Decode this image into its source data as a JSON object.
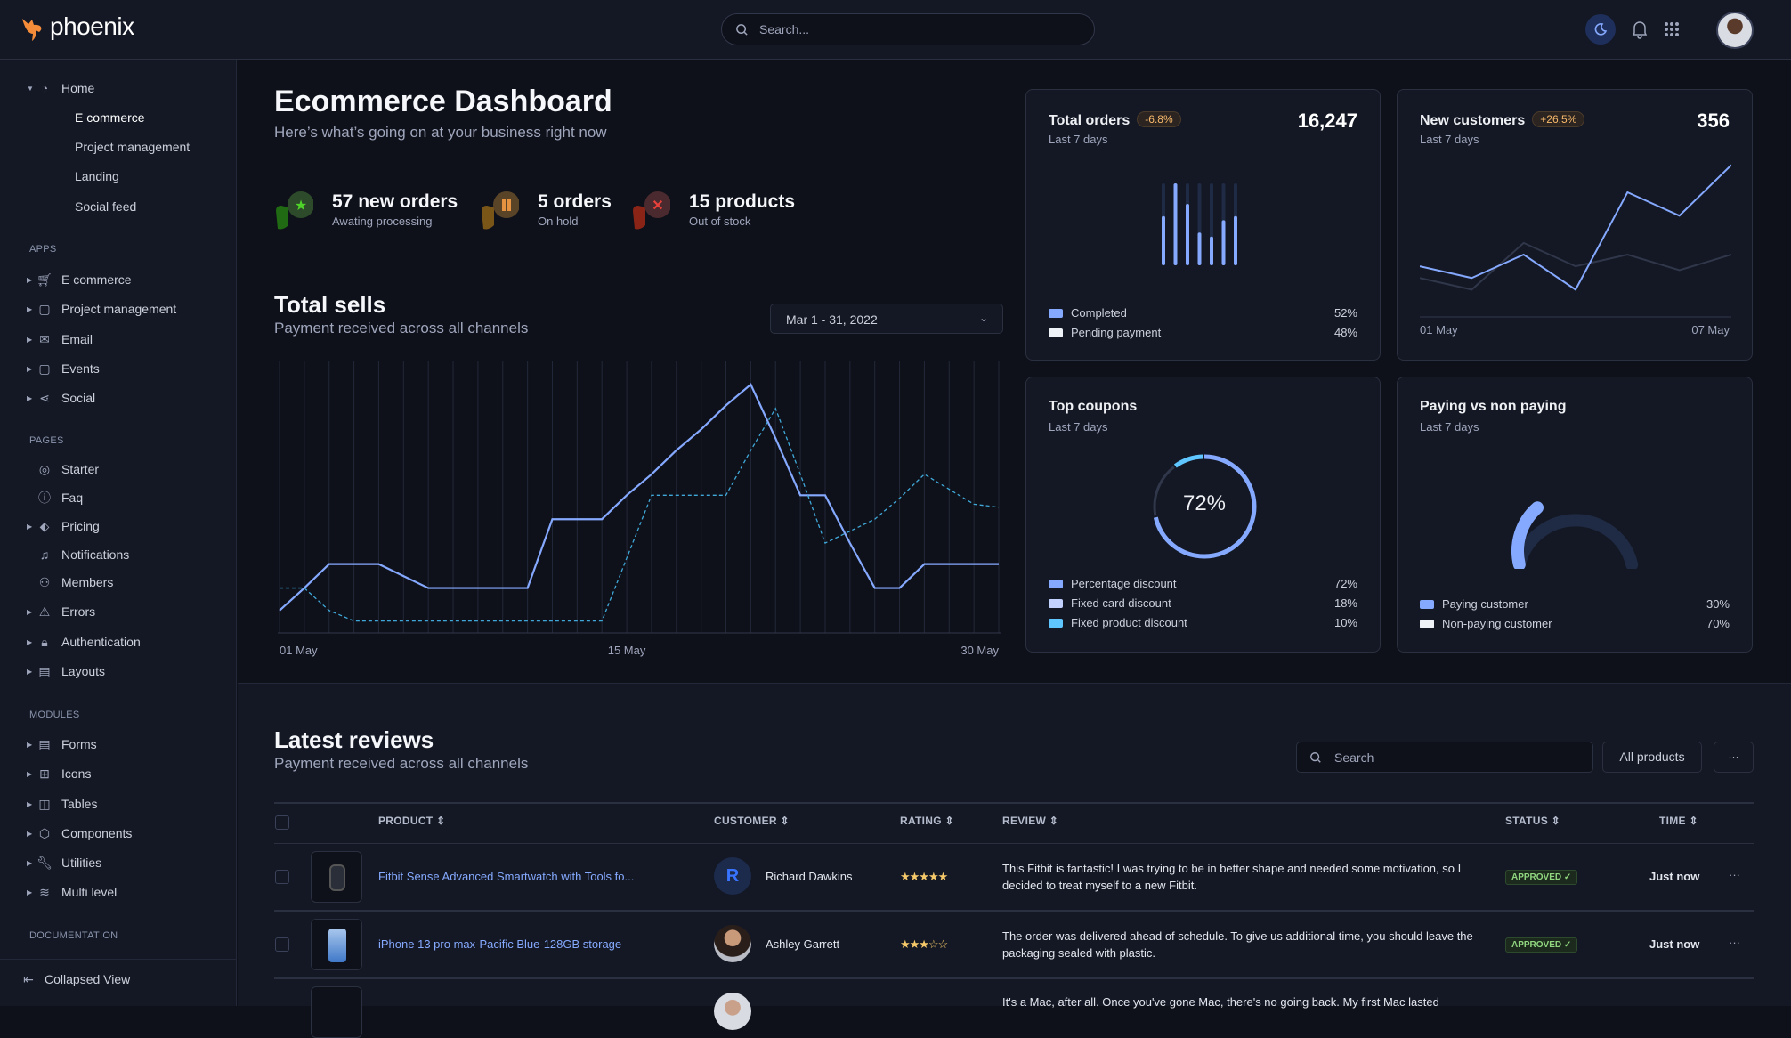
{
  "header": {
    "brand": "phoenix",
    "search_placeholder": "Search...",
    "icons": [
      "moon-icon",
      "bell-icon",
      "apps-grid-icon"
    ]
  },
  "sidebar": {
    "home": {
      "label": "Home",
      "children": [
        "E commerce",
        "Project management",
        "Landing",
        "Social feed"
      ],
      "active": "E commerce"
    },
    "apps": {
      "title": "APPS",
      "items": [
        "E commerce",
        "Project management",
        "Email",
        "Events",
        "Social"
      ]
    },
    "pages": {
      "title": "PAGES",
      "items": [
        "Starter",
        "Faq",
        "Pricing",
        "Notifications",
        "Members",
        "Errors",
        "Authentication",
        "Layouts"
      ]
    },
    "modules": {
      "title": "MODULES",
      "items": [
        "Forms",
        "Icons",
        "Tables",
        "Components",
        "Utilities",
        "Multi level"
      ]
    },
    "documentation": {
      "title": "DOCUMENTATION"
    },
    "collapse_label": "Collapsed View"
  },
  "page": {
    "title": "Ecommerce Dashboard",
    "subtitle": "Here’s what’s going on at your business right now"
  },
  "stats": [
    {
      "value": "57 new orders",
      "label": "Awating processing",
      "color": "#25b003"
    },
    {
      "value": "5 orders",
      "label": "On hold",
      "color": "#e5780b"
    },
    {
      "value": "15 products",
      "label": "Out of stock",
      "color": "#ec1f00"
    }
  ],
  "total_sells": {
    "title": "Total sells",
    "subtitle": "Payment received across all channels",
    "date_range": "Mar 1 - 31, 2022"
  },
  "chart_data": [
    {
      "type": "line",
      "x_ticks": [
        "01 May",
        "15 May",
        "30 May"
      ],
      "ylim": [
        0,
        91
      ],
      "grid": "vertical",
      "series": [
        {
          "style": "solid",
          "color": "#85a9ff",
          "values": [
            7.5,
            15,
            23,
            23,
            23,
            19,
            15,
            15,
            15,
            15,
            15,
            38,
            38,
            38,
            46,
            53,
            61,
            68,
            76,
            83,
            65,
            46,
            46,
            30,
            15,
            15,
            23,
            23,
            23,
            23
          ]
        },
        {
          "style": "dashed",
          "color": "#3fa8d8",
          "values": [
            15,
            15,
            7.5,
            4,
            4,
            4,
            4,
            4,
            4,
            4,
            4,
            4,
            4,
            4,
            25,
            46,
            46,
            46,
            46,
            61,
            75,
            53,
            30,
            34,
            38,
            45,
            53,
            48,
            43,
            42
          ]
        }
      ]
    },
    {
      "type": "bar",
      "title": "Total orders",
      "subtitle": "Last 7 days",
      "values": [
        60,
        100,
        75,
        40,
        35,
        55,
        60
      ],
      "ylim": [
        0,
        100
      ]
    },
    {
      "type": "line",
      "title": "New customers",
      "subtitle": "Last 7 days",
      "x_ticks": [
        "01 May",
        "07 May"
      ],
      "ylim": [
        0,
        40
      ],
      "series": [
        {
          "color": "#85a9ff",
          "values": [
            13,
            10,
            16,
            7,
            32,
            26,
            39
          ]
        },
        {
          "color": "#31374a",
          "values": [
            10,
            7,
            19,
            13,
            16,
            12,
            16
          ]
        }
      ]
    },
    {
      "type": "pie",
      "title": "Top coupons",
      "center_label": "72%",
      "slices": [
        {
          "name": "Percentage discount",
          "value": 72,
          "color": "#85a9ff"
        },
        {
          "name": "Fixed card discount",
          "value": 18,
          "color": "#31374a"
        },
        {
          "name": "Fixed product discount",
          "value": 10,
          "color": "#60c6ff"
        }
      ]
    },
    {
      "type": "pie",
      "title": "Paying vs non paying",
      "slices": [
        {
          "name": "Paying customer",
          "value": 30,
          "color": "#85a9ff"
        },
        {
          "name": "Non-paying customer",
          "value": 70,
          "color": "#1f2a44"
        }
      ]
    }
  ],
  "cards": {
    "total_orders": {
      "title": "Total orders",
      "badge": "-6.8%",
      "value": "16,247",
      "subtitle": "Last 7 days",
      "legend": [
        {
          "label": "Completed",
          "value": "52%",
          "color": "#85a9ff"
        },
        {
          "label": "Pending payment",
          "value": "48%",
          "color": "#eff2f6"
        }
      ]
    },
    "new_customers": {
      "title": "New customers",
      "badge": "+26.5%",
      "value": "356",
      "subtitle": "Last 7 days",
      "x_start": "01 May",
      "x_end": "07 May"
    },
    "top_coupons": {
      "title": "Top coupons",
      "subtitle": "Last 7 days",
      "center": "72%",
      "legend": [
        {
          "label": "Percentage discount",
          "value": "72%",
          "color": "#85a9ff"
        },
        {
          "label": "Fixed card discount",
          "value": "18%",
          "color": "#c3d1ff"
        },
        {
          "label": "Fixed product discount",
          "value": "10%",
          "color": "#60c6ff"
        }
      ]
    },
    "paying": {
      "title": "Paying vs non paying",
      "subtitle": "Last 7 days",
      "legend": [
        {
          "label": "Paying customer",
          "value": "30%",
          "color": "#85a9ff"
        },
        {
          "label": "Non-paying customer",
          "value": "70%",
          "color": "#eff2f6"
        }
      ]
    }
  },
  "reviews": {
    "title": "Latest reviews",
    "subtitle": "Payment received across all channels",
    "search_placeholder": "Search",
    "filter_label": "All products",
    "more_label": "···",
    "columns": [
      "PRODUCT",
      "CUSTOMER",
      "RATING",
      "REVIEW",
      "STATUS",
      "TIME"
    ],
    "rows": [
      {
        "product": "Fitbit Sense Advanced Smartwatch with Tools fo...",
        "customer": "Richard Dawkins",
        "avatar_initial": "R",
        "rating": 5,
        "stars": "★★★★★",
        "review": "This Fitbit is fantastic! I was trying to be in better shape and needed some motivation, so I decided to treat myself to a new Fitbit.",
        "status": "APPROVED ✓",
        "time": "Just now"
      },
      {
        "product": "iPhone 13 pro max-Pacific Blue-128GB storage",
        "customer": "Ashley Garrett",
        "rating": 3,
        "stars": "★★★☆☆",
        "review": "The order was delivered ahead of schedule. To give us additional time, you should leave the packaging sealed with plastic.",
        "status": "APPROVED ✓",
        "time": "Just now"
      },
      {
        "review": "It's a Mac, after all. Once you've gone Mac, there's no going back. My first Mac lasted"
      }
    ]
  }
}
